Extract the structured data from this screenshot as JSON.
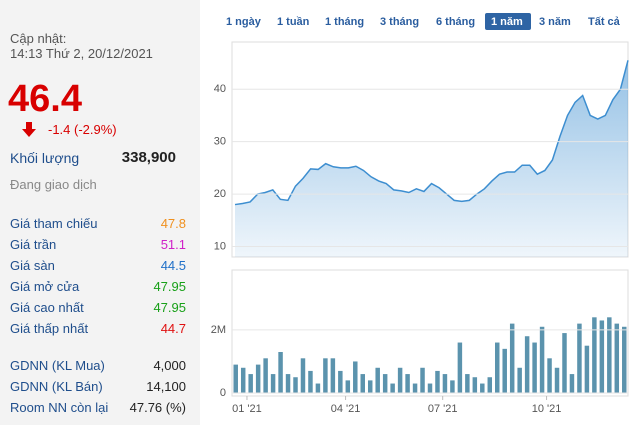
{
  "panel": {
    "updated_label": "Cập nhật:",
    "updated_time": "14:13 Thứ 2, 20/12/2021",
    "price": "46.4",
    "change": "-1.4 (-2.9%)",
    "volume_label": "Khối lượng",
    "volume": "338,900",
    "status": "Đang giao dịch",
    "rows": [
      {
        "label": "Giá tham chiếu",
        "value": "47.8",
        "color": "#f0901e"
      },
      {
        "label": "Giá trần",
        "value": "51.1",
        "color": "#d020c8"
      },
      {
        "label": "Giá sàn",
        "value": "44.5",
        "color": "#2070c8"
      },
      {
        "label": "Giá mở cửa",
        "value": "47.95",
        "color": "#18a018"
      },
      {
        "label": "Giá cao nhất",
        "value": "47.95",
        "color": "#18a018"
      },
      {
        "label": "Giá thấp nhất",
        "value": "44.7",
        "color": "#e01010"
      }
    ],
    "foreign": [
      {
        "label": "GDNN (KL Mua)",
        "value": "4,000"
      },
      {
        "label": "GDNN (KL Bán)",
        "value": "14,100"
      },
      {
        "label": "Room NN còn lại",
        "value": "47.76 (%)"
      }
    ]
  },
  "tabs": [
    "1 ngày",
    "1 tuần",
    "1 tháng",
    "3 tháng",
    "6 tháng",
    "1 năm",
    "3 năm",
    "Tất cả"
  ],
  "active_tab": 5,
  "chart_data": [
    {
      "type": "line",
      "color": "#3d8ed0",
      "values": [
        18,
        18.2,
        18.5,
        20,
        20.3,
        20.8,
        19,
        18.8,
        21.5,
        23,
        24.8,
        24.7,
        25.8,
        25.2,
        25,
        25,
        25.3,
        24.5,
        23.3,
        22.5,
        22,
        20.8,
        20.6,
        20.3,
        21,
        20.5,
        22,
        21.2,
        20,
        18.8,
        18.6,
        18.8,
        20,
        21,
        22.5,
        23.8,
        24.2,
        24.2,
        25.5,
        25.5,
        23.8,
        24.5,
        26.5,
        31,
        35,
        37.5,
        38.8,
        35,
        34.3,
        35,
        38,
        40,
        45.5
      ],
      "ylim": [
        8,
        49
      ],
      "yticks": [
        10,
        20,
        30,
        40
      ],
      "grid": true
    },
    {
      "type": "bar",
      "color": "#5b93ad",
      "values": [
        900000,
        800000,
        600000,
        900000,
        1100000,
        600000,
        1300000,
        600000,
        500000,
        1100000,
        700000,
        300000,
        1100000,
        1100000,
        700000,
        400000,
        1000000,
        600000,
        400000,
        800000,
        600000,
        300000,
        800000,
        600000,
        300000,
        800000,
        300000,
        700000,
        600000,
        400000,
        1600000,
        600000,
        500000,
        300000,
        500000,
        1600000,
        1400000,
        2200000,
        800000,
        1800000,
        1600000,
        2100000,
        1100000,
        800000,
        1900000,
        600000,
        2200000,
        1500000,
        2400000,
        2300000,
        2400000,
        2200000,
        2100000
      ],
      "ylim": [
        0,
        3900000
      ],
      "yticks": [
        0,
        {
          "value": 2000000,
          "label": "2M"
        }
      ],
      "xlim": [
        -0.5,
        52.5
      ],
      "xticks": [
        {
          "value": 1.5,
          "label": "01 '21"
        },
        {
          "value": 14.7,
          "label": "04 '21"
        },
        {
          "value": 27.7,
          "label": "07 '21"
        },
        {
          "value": 41.6,
          "label": "10 '21"
        }
      ],
      "grid": true
    }
  ]
}
